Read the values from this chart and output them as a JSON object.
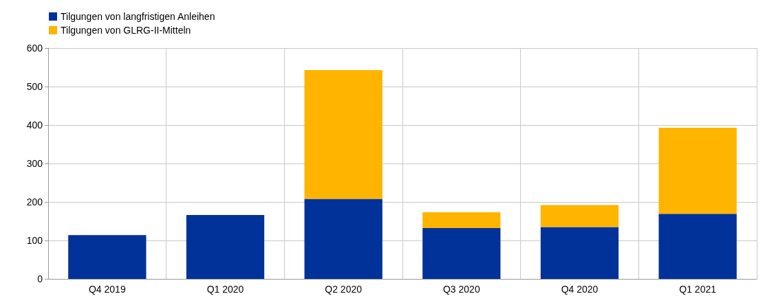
{
  "chart_data": {
    "type": "bar",
    "stacked": true,
    "categories": [
      "Q4 2019",
      "Q1 2020",
      "Q2 2020",
      "Q3 2020",
      "Q4 2020",
      "Q1 2021"
    ],
    "series": [
      {
        "name": "Tilgungen von langfristigen Anleihen",
        "color": "#003299",
        "values": [
          114,
          166,
          208,
          132,
          135,
          169
        ]
      },
      {
        "name": "Tilgungen von GLRG-II-Mitteln",
        "color": "#ffb400",
        "values": [
          null,
          null,
          335,
          41,
          57,
          224
        ]
      }
    ],
    "ylim": [
      0,
      600
    ],
    "yticks": [
      0,
      100,
      200,
      300,
      400,
      500,
      600
    ],
    "grid": true,
    "legend": "top left"
  }
}
